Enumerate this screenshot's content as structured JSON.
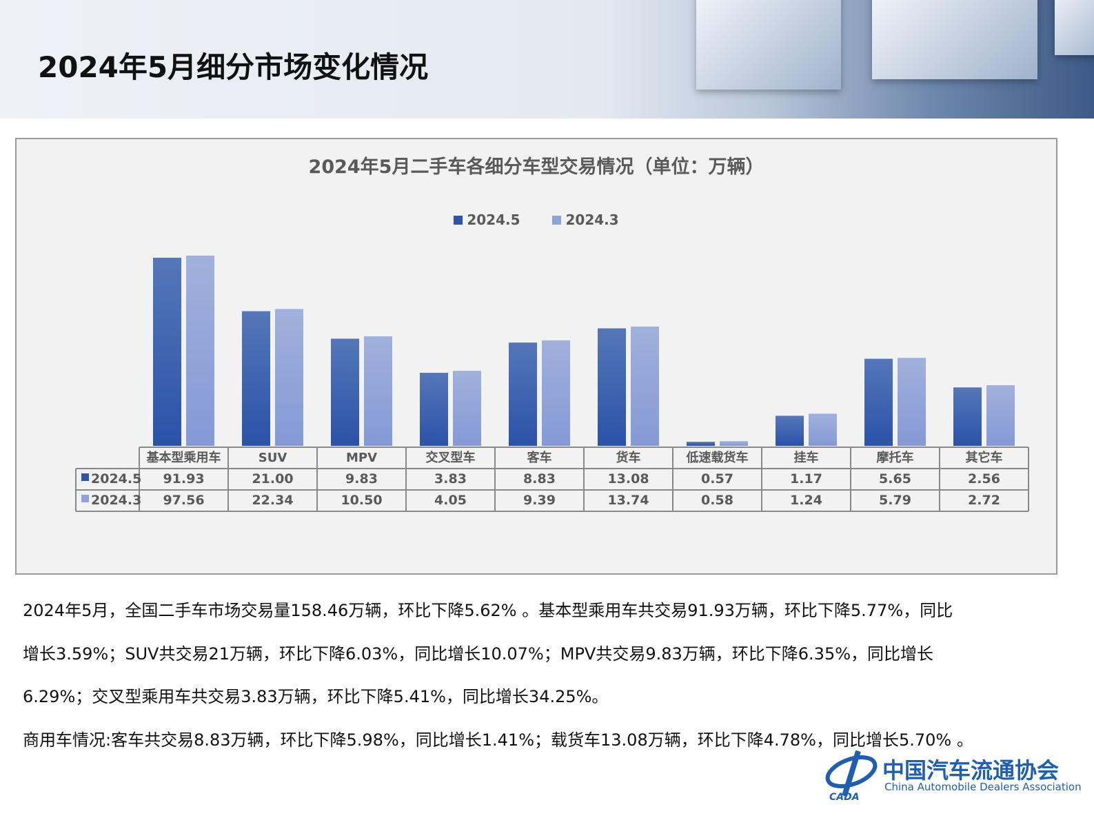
{
  "header": {
    "title": "2024年5月细分市场变化情况"
  },
  "chart_data": {
    "type": "bar",
    "title": "2024年5月二手车各细分车型交易情况（单位：万辆）",
    "categories": [
      "基本型乘用车",
      "SUV",
      "MPV",
      "交叉型车",
      "客车",
      "货车",
      "低速载货车",
      "挂车",
      "摩托车",
      "其它车"
    ],
    "series": [
      {
        "name": "2024.5",
        "color": "#2f55a4",
        "values": [
          91.93,
          21.0,
          9.83,
          3.83,
          8.83,
          13.08,
          0.57,
          1.17,
          5.65,
          2.56
        ]
      },
      {
        "name": "2024.3",
        "color": "#8fa3d8",
        "values": [
          97.56,
          22.34,
          10.5,
          4.05,
          9.39,
          13.74,
          0.58,
          1.24,
          5.79,
          2.72
        ]
      }
    ],
    "value_labels": [
      [
        "91.93",
        "21.00",
        "9.83",
        "3.83",
        "8.83",
        "13.08",
        "0.57",
        "1.17",
        "5.65",
        "2.56"
      ],
      [
        "97.56",
        "22.34",
        "10.50",
        "4.05",
        "9.39",
        "13.74",
        "0.58",
        "1.24",
        "5.79",
        "2.72"
      ]
    ],
    "yscale": "log",
    "ylim": [
      0.51,
      110
    ],
    "grid": false,
    "legend": "top",
    "data_table": true
  },
  "paragraphs": [
    "2024年5月，全国二手车市场交易量158.46万辆，环比下降5.62% 。基本型乘用车共交易91.93万辆，环比下降5.77%，同比",
    "增长3.59%；SUV共交易21万辆，环比下降6.03%，同比增长10.07%；MPV共交易9.83万辆，环比下降6.35%，同比增长",
    "6.29%；交叉型乘用车共交易3.83万辆，环比下降5.41%，同比增长34.25%。",
    "商用车情况:客车共交易8.83万辆，环比下降5.98%，同比增长1.41%；载货车13.08万辆，环比下降4.78%，同比增长5.70% 。"
  ],
  "logo": {
    "cn": "中国汽车流通协会",
    "en": "China Automobile Dealers Association",
    "abbr": "CADA"
  }
}
